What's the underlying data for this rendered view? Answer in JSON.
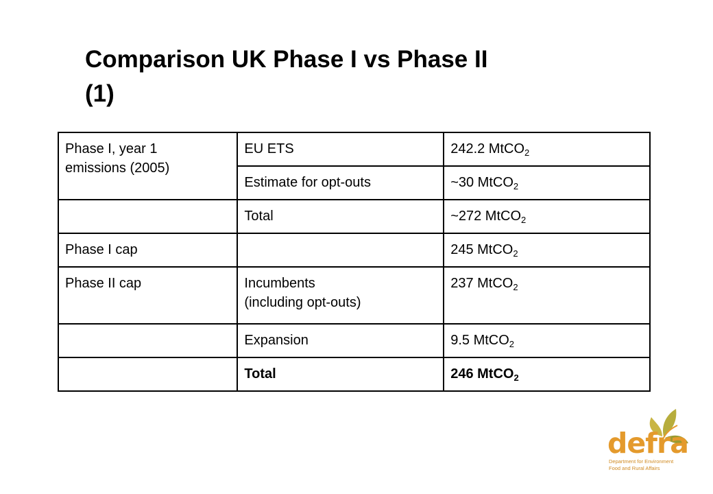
{
  "title": {
    "line1": "Comparison UK Phase I vs Phase II",
    "line2": "(1)"
  },
  "table": {
    "rows": [
      {
        "col1": [
          "Phase I, year 1",
          "emissions (2005)"
        ],
        "col2": [
          "EU ETS"
        ],
        "col3_value": "242.2 MtCO",
        "col3_sub": "2",
        "bold": false
      },
      {
        "col1": [],
        "col2": [
          "Estimate for opt-outs"
        ],
        "col3_value": "~30 MtCO",
        "col3_sub": "2",
        "bold": false
      },
      {
        "col1": [],
        "col2": [
          "Total"
        ],
        "col3_value": "~272 MtCO",
        "col3_sub": "2",
        "bold": false
      },
      {
        "col1": [
          "Phase I cap"
        ],
        "col2": [],
        "col3_value": "245 MtCO",
        "col3_sub": "2",
        "bold": false
      },
      {
        "col1": [
          "Phase II cap"
        ],
        "col2": [
          "Incumbents",
          "(including opt-outs)"
        ],
        "col3_value": "237 MtCO",
        "col3_sub": "2",
        "bold": false
      },
      {
        "col1": [],
        "col2": [
          "Expansion"
        ],
        "col3_value": "9.5 MtCO",
        "col3_sub": "2",
        "bold": false
      },
      {
        "col1": [],
        "col2": [
          "Total"
        ],
        "col3_value": "246 MtCO",
        "col3_sub": "2",
        "bold": true
      }
    ]
  },
  "logo": {
    "word": "defra",
    "subtitle_line1": "Department for Environment",
    "subtitle_line2": "Food and Rural Affairs",
    "colors": {
      "primary": "#e49a2c",
      "leaf_light": "#c9b544",
      "leaf_dark": "#9a9a30"
    }
  }
}
